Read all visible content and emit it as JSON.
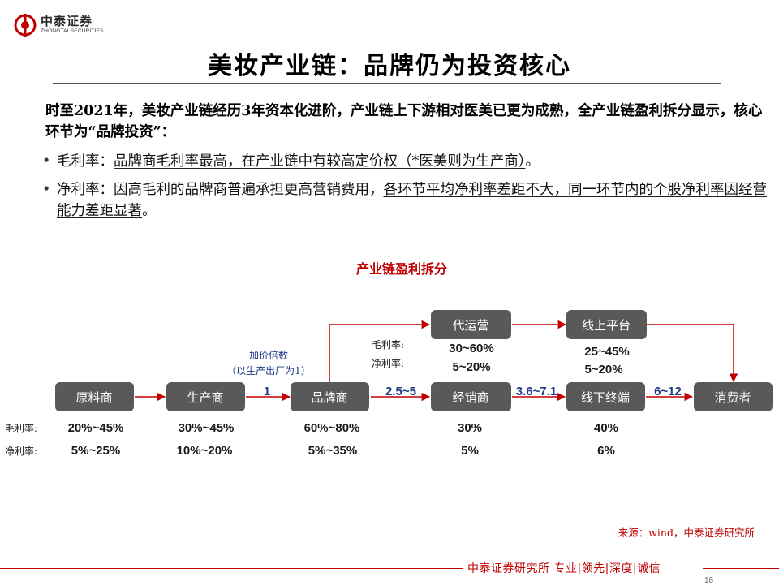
{
  "brand": {
    "name_cn": "中泰证券",
    "name_en": "ZHONGTAI SECURITIES"
  },
  "title": "美妆产业链：品牌仍为投资核心",
  "intro": "时至2021年，美妆产业链经历3年资本化进阶，产业链上下游相对医美已更为成熟，全产业链盈利拆分显示，核心环节为“品牌投资”：",
  "bullets": [
    {
      "label": "毛利率：",
      "underlined": "品牌商毛利率最高，在产业链中有较高定价权（*医美则为生产商）",
      "suffix": "。"
    },
    {
      "label": "净利率：",
      "plain": "因高毛利的品牌商普遍承担更高营销费用，",
      "underlined": "各环节平均净利率差距不大，同一环节内的个股净利率因经营能力差距显著",
      "suffix": "。"
    }
  ],
  "chart_title": "产业链盈利拆分",
  "diagram": {
    "colors": {
      "node_fill": "#595959",
      "arrow": "#c00000",
      "multiplier": "#1f3c88"
    },
    "markup_note": [
      "加价倍数",
      "（以生产出厂为1）"
    ],
    "row_labels": {
      "gross": "毛利率:",
      "net": "净利率:"
    },
    "nodes": [
      {
        "id": "raw",
        "label": "原料商",
        "gross": "20%~45%",
        "net": "5%~25%"
      },
      {
        "id": "mfr",
        "label": "生产商",
        "gross": "30%~45%",
        "net": "10%~20%"
      },
      {
        "id": "brand",
        "label": "品牌商",
        "gross": "60%~80%",
        "net": "5%~35%"
      },
      {
        "id": "dist",
        "label": "经销商",
        "gross": "30%",
        "net": "5%"
      },
      {
        "id": "offline",
        "label": "线下终端",
        "gross": "40%",
        "net": "6%"
      },
      {
        "id": "consumer",
        "label": "消费者"
      },
      {
        "id": "agency",
        "label": "代运营",
        "gross": "30~60%",
        "net": "5~20%",
        "gross_label": "毛利率:",
        "net_label": "净利率:"
      },
      {
        "id": "online",
        "label": "线上平台",
        "gross": "25~45%",
        "net": "5~20%"
      }
    ],
    "multipliers": [
      {
        "from": "mfr",
        "to": "brand",
        "value": "1"
      },
      {
        "from": "brand",
        "to": "dist",
        "value": "2.5~5"
      },
      {
        "from": "dist",
        "to": "offline",
        "value": "3.6~7.1"
      },
      {
        "from": "offline",
        "to": "consumer",
        "value": "6~12"
      }
    ]
  },
  "source": "来源：wind，中泰证券研究所",
  "footer": "中泰证券研究所 专业|领先|深度|诚信",
  "page": "18"
}
